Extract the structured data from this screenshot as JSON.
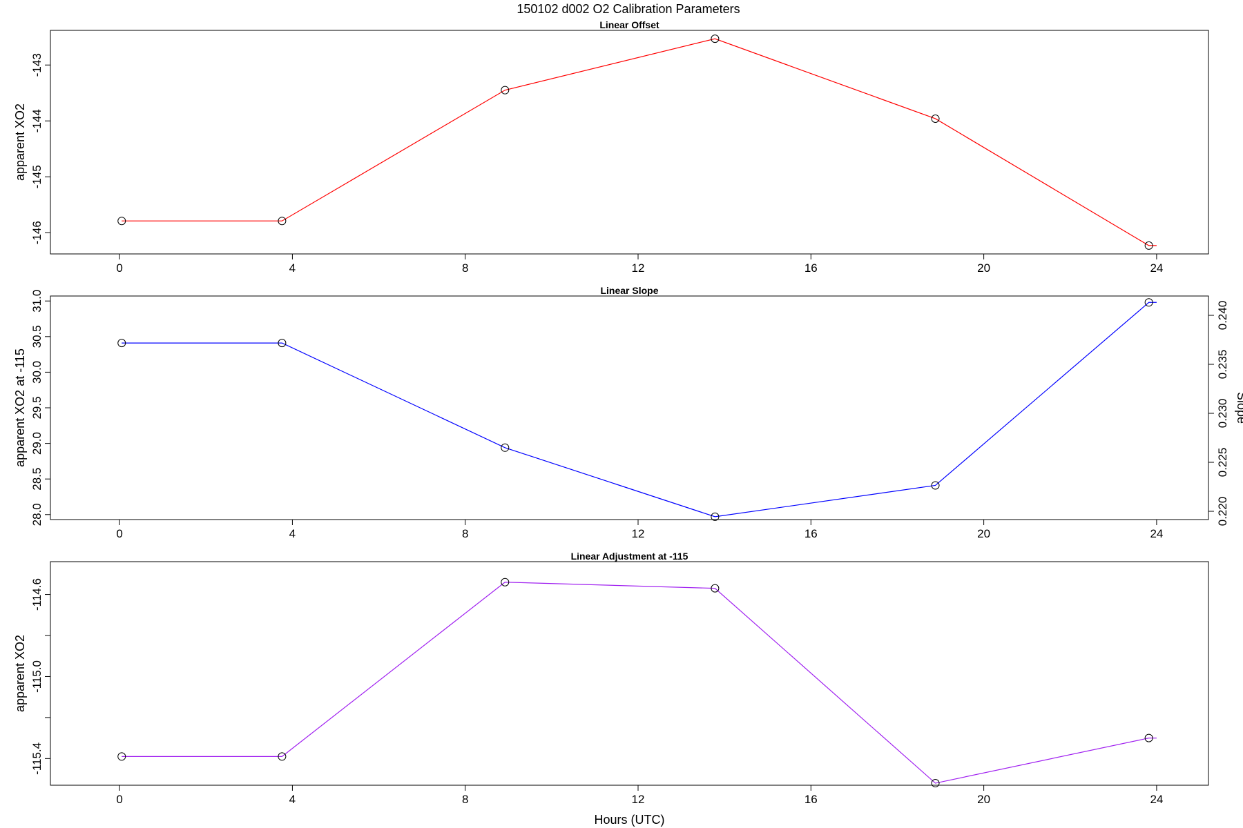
{
  "figure_title": "150102   d002   O2 Calibration Parameters",
  "chart_data": [
    {
      "type": "line",
      "title": "Linear Offset",
      "xlabel": "",
      "ylabel": "apparent XO2",
      "xlim": [
        -1.6,
        25.2
      ],
      "ylim": [
        -146.38,
        -142.38
      ],
      "xticks": [
        0,
        4,
        8,
        12,
        16,
        20,
        24
      ],
      "yticks": [
        -146,
        -145,
        -144,
        -143
      ],
      "color": "#ff0000",
      "x": [
        0.05,
        3.76,
        8.92,
        13.78,
        18.88,
        23.82
      ],
      "y": [
        -145.79,
        -145.79,
        -143.45,
        -142.53,
        -143.96,
        -146.23
      ],
      "line_end_x": 24.0,
      "grid": false
    },
    {
      "type": "line",
      "title": "Linear Slope",
      "xlabel": "",
      "ylabel": "apparent XO2 at -115",
      "ylabel_right": "Slope",
      "xlim": [
        -1.6,
        25.2
      ],
      "ylim": [
        27.93,
        31.07
      ],
      "xticks": [
        0,
        4,
        8,
        12,
        16,
        20,
        24
      ],
      "yticks": [
        "28.0",
        "28.5",
        "29.0",
        "29.5",
        "30.0",
        "30.5",
        "31.0"
      ],
      "yticks_right": [
        "0.220",
        "0.225",
        "0.230",
        "0.235",
        "0.240"
      ],
      "color": "#0000ff",
      "x": [
        0.05,
        3.76,
        8.92,
        13.78,
        18.88,
        23.82
      ],
      "y": [
        30.41,
        30.41,
        28.94,
        27.97,
        28.41,
        30.98
      ],
      "line_end_x": 24.0,
      "grid": false
    },
    {
      "type": "line",
      "title": "Linear Adjustment at -115",
      "xlabel": "Hours (UTC)",
      "ylabel": "apparent XO2",
      "xlim": [
        -1.6,
        25.2
      ],
      "ylim": [
        -115.53,
        -114.44
      ],
      "xticks": [
        0,
        4,
        8,
        12,
        16,
        20,
        24
      ],
      "yticks": [
        "-115.4",
        "-115.0",
        "-114.6"
      ],
      "ytick_marks": [
        -115.4,
        -115.2,
        -115.0,
        -114.8,
        -114.6
      ],
      "color": "#a020f0",
      "x": [
        0.05,
        3.76,
        8.92,
        13.78,
        18.88,
        23.82
      ],
      "y": [
        -115.39,
        -115.39,
        -114.54,
        -114.57,
        -115.52,
        -115.3
      ],
      "line_end_x": 24.0,
      "grid": false
    }
  ]
}
